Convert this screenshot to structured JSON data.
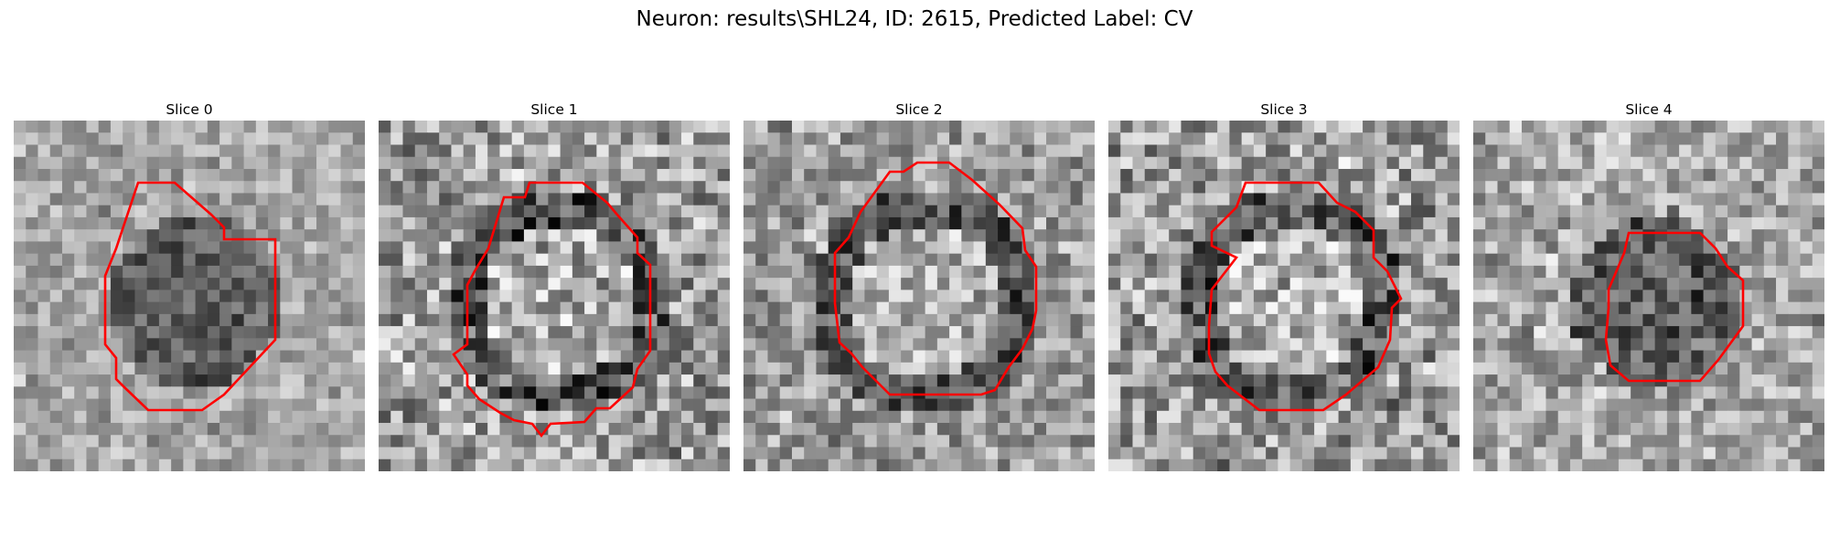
{
  "figure": {
    "title": "Neuron: results\\SHL24, ID: 2615, Predicted Label: CV"
  },
  "colors": {
    "contour": "#ff0000",
    "background": "#ffffff"
  },
  "slices": [
    {
      "title": "Slice 0",
      "seed": 11,
      "contrast": "low",
      "center_tone": "dark",
      "ring": false
    },
    {
      "title": "Slice 1",
      "seed": 23,
      "contrast": "high",
      "center_tone": "light",
      "ring": true
    },
    {
      "title": "Slice 2",
      "seed": 37,
      "contrast": "medium",
      "center_tone": "light",
      "ring": true
    },
    {
      "title": "Slice 3",
      "seed": 41,
      "contrast": "high",
      "center_tone": "light",
      "ring": true
    },
    {
      "title": "Slice 4",
      "seed": 59,
      "contrast": "medium",
      "center_tone": "dark",
      "ring": false
    }
  ]
}
